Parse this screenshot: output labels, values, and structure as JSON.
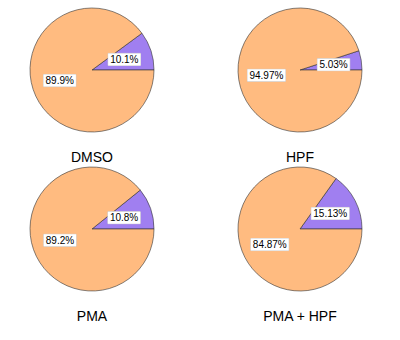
{
  "chart_data": [
    {
      "type": "pie",
      "title": "DMSO",
      "values": [
        10.1,
        89.9
      ],
      "value_labels": [
        "10.1%",
        "89.9%"
      ],
      "colors": [
        "#a07ff0",
        "#ffbb80"
      ],
      "data_labels": true
    },
    {
      "type": "pie",
      "title": "HPF",
      "values": [
        5.03,
        94.97
      ],
      "value_labels": [
        "5.03%",
        "94.97%"
      ],
      "colors": [
        "#a07ff0",
        "#ffbb80"
      ],
      "data_labels": true
    },
    {
      "type": "pie",
      "title": "PMA",
      "values": [
        10.8,
        89.2
      ],
      "value_labels": [
        "10.8%",
        "89.2%"
      ],
      "colors": [
        "#a07ff0",
        "#ffbb80"
      ],
      "data_labels": true
    },
    {
      "type": "pie",
      "title": "PMA + HPF",
      "values": [
        15.13,
        84.87
      ],
      "value_labels": [
        "15.13%",
        "84.87%"
      ],
      "colors": [
        "#a07ff0",
        "#ffbb80"
      ],
      "data_labels": true
    }
  ]
}
